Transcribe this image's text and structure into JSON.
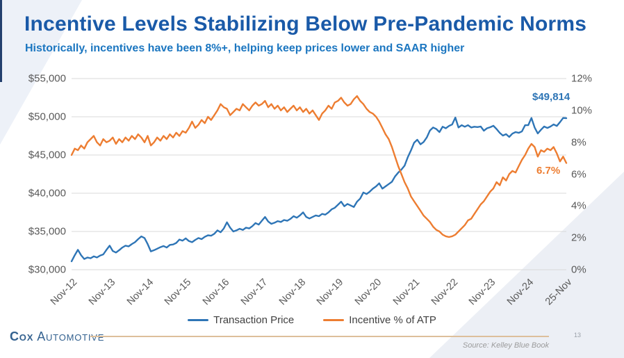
{
  "slide": {
    "title": "Incentive Levels Stabilizing Below Pre-Pandemic Norms",
    "subtitle": "Historically, incentives have been 8%+, helping keep prices lower and SAAR higher",
    "page_number": "13",
    "source": "Source: Kelley Blue Book",
    "logo": {
      "part1": "Cox",
      "part2": "Automotive"
    }
  },
  "colors": {
    "title_blue": "#1a5aa8",
    "subtitle_blue": "#1b76c0",
    "transaction_price": "#2e75b6",
    "incentive_pct": "#ed7d31",
    "gridline": "#d9d9d9",
    "axis_text": "#595959",
    "footer_gold": "#ddbf9b",
    "navy_strip": "#24406e"
  },
  "chart_data": {
    "type": "line",
    "x_description": "Monthly data, Nov-2012 through Nov-2025",
    "x_tick_labels": [
      "Nov-12",
      "Nov-13",
      "Nov-14",
      "Nov-15",
      "Nov-16",
      "Nov-17",
      "Nov-18",
      "Nov-19",
      "Nov-20",
      "Nov-21",
      "Nov-22",
      "Nov-23",
      "Nov-24",
      "25-Nov"
    ],
    "left_axis": {
      "min": 30000,
      "max": 55000,
      "tick_labels": [
        "$55,000",
        "$50,000",
        "$45,000",
        "$40,000",
        "$35,000",
        "$30,000"
      ],
      "tick_values": [
        55000,
        50000,
        45000,
        40000,
        35000,
        30000
      ]
    },
    "right_axis": {
      "min": 0,
      "max": 12,
      "tick_labels": [
        "12%",
        "10%",
        "8%",
        "6%",
        "4%",
        "2%",
        "0%"
      ],
      "tick_values": [
        12,
        10,
        8,
        6,
        4,
        2,
        0
      ]
    },
    "grid": "horizontal",
    "legend_position": "bottom-center",
    "annotations": [
      {
        "text": "$49,814",
        "series": "Transaction Price"
      },
      {
        "text": "6.7%",
        "series": "Incentive % of ATP"
      }
    ],
    "series": [
      {
        "name": "Transaction Price",
        "axis": "left",
        "color": "#2e75b6",
        "values": [
          31100,
          31900,
          32600,
          31900,
          31400,
          31600,
          31500,
          31750,
          31600,
          31850,
          32000,
          32600,
          33150,
          32450,
          32250,
          32550,
          32900,
          33150,
          33050,
          33350,
          33600,
          34000,
          34350,
          34150,
          33350,
          32400,
          32550,
          32750,
          32950,
          33100,
          32900,
          33250,
          33300,
          33500,
          33950,
          33800,
          34100,
          33750,
          33600,
          33900,
          34150,
          34000,
          34300,
          34500,
          34450,
          34700,
          35150,
          34900,
          35400,
          36200,
          35500,
          35000,
          35150,
          35350,
          35200,
          35500,
          35400,
          35700,
          36100,
          35900,
          36400,
          36900,
          36300,
          36000,
          36150,
          36350,
          36250,
          36500,
          36400,
          36650,
          37000,
          36800,
          37100,
          37500,
          36900,
          36700,
          36900,
          37100,
          37000,
          37300,
          37200,
          37500,
          37900,
          38100,
          38500,
          38900,
          38300,
          38600,
          38400,
          38200,
          38900,
          39300,
          40100,
          39900,
          40200,
          40600,
          40900,
          41300,
          40600,
          40900,
          41200,
          41500,
          42200,
          42700,
          43100,
          43600,
          44700,
          45600,
          46600,
          47000,
          46400,
          46700,
          47300,
          48200,
          48600,
          48400,
          48000,
          48700,
          48500,
          48800,
          49000,
          49900,
          48600,
          48900,
          48700,
          48900,
          48600,
          48700,
          48650,
          48730,
          48180,
          48500,
          48640,
          48825,
          48400,
          47900,
          47545,
          47730,
          47360,
          47800,
          48000,
          47900,
          48090,
          48900,
          48900,
          49850,
          48600,
          47820,
          48300,
          48730,
          48540,
          48730,
          49000,
          48800,
          49300,
          49850,
          49814
        ]
      },
      {
        "name": "Incentive % of ATP",
        "axis": "right",
        "color": "#ed7d31",
        "values": [
          7.2,
          7.6,
          7.5,
          7.8,
          7.6,
          8.0,
          8.2,
          8.4,
          8.0,
          7.8,
          8.2,
          8.0,
          8.1,
          8.3,
          7.9,
          8.2,
          8.0,
          8.3,
          8.1,
          8.4,
          8.2,
          8.5,
          8.3,
          8.0,
          8.4,
          7.8,
          8.0,
          8.3,
          8.1,
          8.4,
          8.2,
          8.5,
          8.3,
          8.6,
          8.4,
          8.7,
          8.6,
          8.9,
          9.3,
          8.9,
          9.1,
          9.4,
          9.2,
          9.6,
          9.4,
          9.7,
          10.0,
          10.4,
          10.2,
          10.1,
          9.7,
          9.9,
          10.1,
          10.0,
          10.4,
          10.2,
          10.0,
          10.3,
          10.5,
          10.3,
          10.4,
          10.6,
          10.2,
          10.4,
          10.1,
          10.3,
          10.0,
          10.2,
          9.9,
          10.1,
          10.3,
          10.0,
          10.2,
          9.9,
          10.1,
          9.8,
          10.0,
          9.7,
          9.4,
          9.8,
          10.0,
          10.3,
          10.1,
          10.5,
          10.6,
          10.8,
          10.5,
          10.3,
          10.4,
          10.7,
          10.9,
          10.6,
          10.4,
          10.1,
          9.9,
          9.8,
          9.6,
          9.3,
          8.9,
          8.5,
          8.2,
          7.7,
          7.1,
          6.5,
          6.0,
          5.5,
          5.1,
          4.6,
          4.3,
          4.0,
          3.7,
          3.4,
          3.2,
          3.0,
          2.7,
          2.5,
          2.4,
          2.2,
          2.1,
          2.05,
          2.1,
          2.2,
          2.4,
          2.6,
          2.8,
          3.1,
          3.2,
          3.5,
          3.8,
          4.1,
          4.3,
          4.6,
          4.9,
          5.1,
          5.5,
          5.3,
          5.8,
          5.6,
          6.0,
          6.2,
          6.1,
          6.5,
          6.9,
          7.2,
          7.6,
          7.9,
          7.7,
          7.1,
          7.5,
          7.4,
          7.6,
          7.5,
          7.7,
          7.3,
          6.8,
          7.1,
          6.7
        ]
      }
    ]
  }
}
